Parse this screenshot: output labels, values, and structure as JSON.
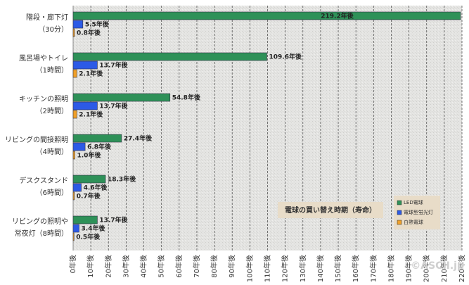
{
  "chart_data": {
    "type": "hbar",
    "annotations": [
      "電球の買い替え時期（寿命）",
      "©ASCII.jp"
    ],
    "categories": [
      [
        "階段・廊下灯",
        "（30分）"
      ],
      [
        "風呂場やトイレ",
        "（1時間）"
      ],
      [
        "キッチンの照明",
        "（2時間）"
      ],
      [
        "リビングの間接照明",
        "（4時間）"
      ],
      [
        "デスクスタンド",
        "（6時間）"
      ],
      [
        "リビングの照明や",
        "常夜灯（8時間）"
      ]
    ],
    "series": [
      {
        "name": "LED電球",
        "color": "#2e9158",
        "values": [
          219.2,
          109.6,
          54.8,
          27.4,
          18.3,
          13.7
        ],
        "value_labels": [
          "219.2年後",
          "109.6年後",
          "54.8年後",
          "27.4年後",
          "18.3年後",
          "13.7年後"
        ]
      },
      {
        "name": "電球型蛍光灯",
        "color": "#2c5ae6",
        "values": [
          5.5,
          13.7,
          13.7,
          6.8,
          4.6,
          3.4
        ],
        "value_labels": [
          "5.5年後",
          "13.7年後",
          "13.7年後",
          "6.8年後",
          "4.6年後",
          "3.4年後"
        ]
      },
      {
        "name": "白熱電球",
        "color": "#f0a028",
        "values": [
          0.8,
          2.1,
          2.1,
          1.0,
          0.7,
          0.5
        ],
        "value_labels": [
          "0.8年後",
          "2.1年後",
          "2.1年後",
          "1.0年後",
          "0.7年後",
          "0.5年後"
        ]
      }
    ],
    "xlim": [
      0,
      220
    ],
    "xticks": [
      {
        "value": 0,
        "label": "0年後"
      },
      {
        "value": 10,
        "label": "10年後"
      },
      {
        "value": 20,
        "label": "20年後"
      },
      {
        "value": 30,
        "label": "30年後"
      },
      {
        "value": 40,
        "label": "40年後"
      },
      {
        "value": 50,
        "label": "50年後"
      },
      {
        "value": 60,
        "label": "60年後"
      },
      {
        "value": 70,
        "label": "70年後"
      },
      {
        "value": 80,
        "label": "80年後"
      },
      {
        "value": 90,
        "label": "90年後"
      },
      {
        "value": 100,
        "label": "100年後"
      },
      {
        "value": 110,
        "label": "110年後"
      },
      {
        "value": 120,
        "label": "120年後"
      },
      {
        "value": 130,
        "label": "130年後"
      },
      {
        "value": 140,
        "label": "140年後"
      },
      {
        "value": 150,
        "label": "150年後"
      },
      {
        "value": 160,
        "label": "160年後"
      },
      {
        "value": 170,
        "label": "170年後"
      },
      {
        "value": 180,
        "label": "180年後"
      },
      {
        "value": 190,
        "label": "190年後"
      },
      {
        "value": 200,
        "label": "200年後"
      },
      {
        "value": 210,
        "label": "210年後"
      },
      {
        "value": 220,
        "label": "220年後"
      }
    ],
    "grid": true,
    "legend": "lower right"
  }
}
